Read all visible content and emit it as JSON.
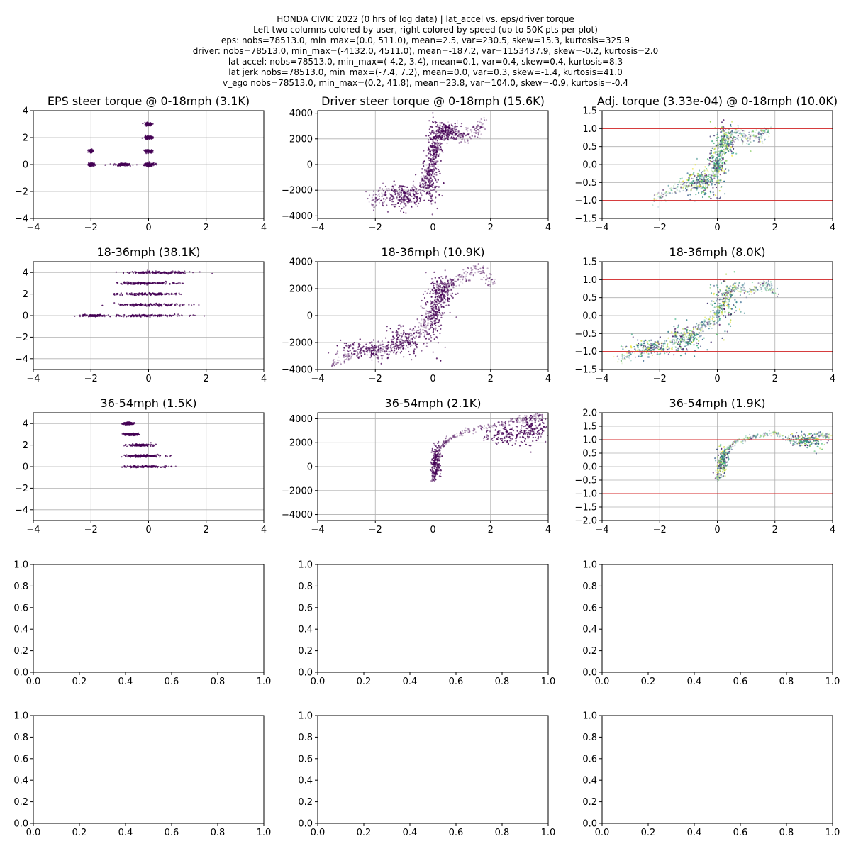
{
  "figure": {
    "suptitle_lines": [
      "HONDA CIVIC 2022 (0 hrs of log data) | lat_accel vs. eps/driver torque",
      "Left two columns colored by user, right colored by speed (up to 50K pts per plot)",
      "eps: nobs=78513.0, min_max=(0.0, 511.0), mean=2.5, var=230.5, skew=15.3, kurtosis=325.9",
      "driver: nobs=78513.0, min_max=(-4132.0, 4511.0), mean=-187.2, var=1153437.9, skew=-0.2, kurtosis=2.0",
      "lat accel: nobs=78513.0, min_max=(-4.2, 3.4), mean=0.1, var=0.4, skew=0.4, kurtosis=8.3",
      "lat jerk nobs=78513.0, min_max=(-7.4, 7.2), mean=0.0, var=0.3, skew=-1.4, kurtosis=41.0",
      "v_ego nobs=78513.0, min_max=(0.2, 41.8), mean=23.8, var=104.0, skew=-0.9, kurtosis=-0.4"
    ]
  },
  "colors": {
    "user_dark": "#440154",
    "speed_colormap": [
      "#440154",
      "#31688e",
      "#35b779",
      "#fde725"
    ],
    "limit_line": "#d62728",
    "grid": "#b0b0b0"
  },
  "chart_data": [
    {
      "type": "scatter",
      "title": "EPS steer torque @ 0-18mph (3.1K)",
      "xlim": [
        -4,
        4
      ],
      "ylim": [
        -4,
        4
      ],
      "xticks": [
        -4,
        -2,
        0,
        2,
        4
      ],
      "yticks": [
        -4,
        -2,
        0,
        2,
        4
      ],
      "grid": true,
      "color": "user",
      "clusters": [
        [
          -2.0,
          0,
          0.05,
          0.05
        ],
        [
          -2.0,
          1.0,
          0.03,
          0.05
        ],
        [
          -0.9,
          0,
          0.15,
          0.04
        ],
        [
          0,
          0,
          0.1,
          0.06
        ],
        [
          0,
          1,
          0.07,
          0.05
        ],
        [
          0,
          2,
          0.07,
          0.05
        ],
        [
          0,
          3,
          0.06,
          0.05
        ]
      ],
      "hlines": []
    },
    {
      "type": "scatter",
      "title": "Driver steer torque @ 0-18mph (15.6K)",
      "xlim": [
        -4,
        4
      ],
      "ylim": [
        -4200,
        4200
      ],
      "xticks": [
        -4,
        -2,
        0,
        2,
        4
      ],
      "yticks": [
        -4000,
        -2000,
        0,
        2000,
        4000
      ],
      "grid": true,
      "color": "user",
      "path": [
        [
          -2.2,
          -3000
        ],
        [
          -1.8,
          -2500
        ],
        [
          -1.2,
          -2200
        ],
        [
          -0.8,
          -2500
        ],
        [
          -0.4,
          -1800
        ],
        [
          -0.1,
          -600
        ],
        [
          0.0,
          0
        ],
        [
          0.1,
          1200
        ],
        [
          0.2,
          2400
        ],
        [
          0.6,
          2700
        ],
        [
          1.0,
          2200
        ],
        [
          1.4,
          2600
        ],
        [
          1.8,
          3200
        ]
      ],
      "spread": [
        0.15,
        700
      ],
      "clusters": [
        [
          -1.0,
          -2500,
          0.3,
          500
        ],
        [
          -0.1,
          -1500,
          0.15,
          900
        ],
        [
          0.05,
          1500,
          0.12,
          1000
        ],
        [
          0.5,
          2500,
          0.2,
          400
        ]
      ],
      "hlines": []
    },
    {
      "type": "scatter",
      "title": "Adj. torque (3.33e-04) @ 0-18mph (10.0K)",
      "xlim": [
        -4,
        4
      ],
      "ylim": [
        -1.5,
        1.5
      ],
      "xticks": [
        -4,
        -2,
        0,
        2,
        4
      ],
      "yticks": [
        -1.5,
        -1.0,
        -0.5,
        0.0,
        0.5,
        1.0,
        1.5
      ],
      "grid": true,
      "color": "speed",
      "path": [
        [
          -2.2,
          -1.0
        ],
        [
          -1.6,
          -0.7
        ],
        [
          -1.0,
          -0.6
        ],
        [
          -0.5,
          -0.5
        ],
        [
          -0.1,
          -0.2
        ],
        [
          0.0,
          0.0
        ],
        [
          0.1,
          0.4
        ],
        [
          0.3,
          0.8
        ],
        [
          0.7,
          0.9
        ],
        [
          1.1,
          0.7
        ],
        [
          1.5,
          0.8
        ],
        [
          1.8,
          1.0
        ]
      ],
      "spread": [
        0.15,
        0.2
      ],
      "clusters": [
        [
          -0.6,
          -0.5,
          0.25,
          0.2
        ],
        [
          0.0,
          0.0,
          0.15,
          0.4
        ],
        [
          0.3,
          0.6,
          0.2,
          0.25
        ]
      ],
      "hlines": [
        1.0,
        -1.0
      ]
    },
    {
      "type": "scatter",
      "title": "18-36mph (38.1K)",
      "xlim": [
        -4,
        4
      ],
      "ylim": [
        -5,
        5
      ],
      "xticks": [
        -4,
        -2,
        0,
        2,
        4
      ],
      "yticks": [
        -4,
        -2,
        0,
        2,
        4
      ],
      "grid": true,
      "color": "user",
      "clusters": [
        [
          -1.9,
          0,
          0.2,
          0.04
        ],
        [
          0.0,
          0,
          0.65,
          0.05
        ],
        [
          0.0,
          1,
          0.6,
          0.05
        ],
        [
          0.0,
          2,
          0.55,
          0.05
        ],
        [
          -0.1,
          3,
          0.5,
          0.05
        ],
        [
          0.3,
          4,
          0.6,
          0.05
        ]
      ],
      "hlines": []
    },
    {
      "type": "scatter",
      "title": "18-36mph (10.9K)",
      "xlim": [
        -4,
        4
      ],
      "ylim": [
        -4000,
        4000
      ],
      "xticks": [
        -4,
        -2,
        0,
        2,
        4
      ],
      "yticks": [
        -4000,
        -2000,
        0,
        2000,
        4000
      ],
      "grid": true,
      "color": "user",
      "path": [
        [
          -3.5,
          -3700
        ],
        [
          -3.0,
          -3000
        ],
        [
          -2.0,
          -2700
        ],
        [
          -1.2,
          -2200
        ],
        [
          -0.5,
          -1200
        ],
        [
          -0.1,
          -400
        ],
        [
          0.0,
          0
        ],
        [
          0.2,
          1200
        ],
        [
          0.5,
          2200
        ],
        [
          1.0,
          2700
        ],
        [
          1.6,
          3500
        ],
        [
          2.1,
          2300
        ]
      ],
      "spread": [
        0.2,
        500
      ],
      "clusters": [
        [
          -2.2,
          -2500,
          0.5,
          300
        ],
        [
          -1.0,
          -1900,
          0.35,
          600
        ],
        [
          0.0,
          0,
          0.18,
          1200
        ],
        [
          0.3,
          1700,
          0.2,
          600
        ]
      ],
      "hlines": []
    },
    {
      "type": "scatter",
      "title": "18-36mph (8.0K)",
      "xlim": [
        -4,
        4
      ],
      "ylim": [
        -1.5,
        1.5
      ],
      "xticks": [
        -4,
        -2,
        0,
        2,
        4
      ],
      "yticks": [
        -1.5,
        -1.0,
        -0.5,
        0.0,
        0.5,
        1.0,
        1.5
      ],
      "grid": true,
      "color": "speed",
      "path": [
        [
          -3.4,
          -1.2
        ],
        [
          -2.8,
          -1.0
        ],
        [
          -2.0,
          -0.85
        ],
        [
          -1.0,
          -0.6
        ],
        [
          -0.5,
          -0.3
        ],
        [
          0.0,
          0.0
        ],
        [
          0.3,
          0.5
        ],
        [
          0.6,
          0.8
        ],
        [
          1.2,
          0.7
        ],
        [
          1.7,
          0.9
        ],
        [
          2.0,
          0.6
        ]
      ],
      "spread": [
        0.2,
        0.15
      ],
      "clusters": [
        [
          -2.3,
          -0.9,
          0.5,
          0.12
        ],
        [
          -1.0,
          -0.6,
          0.3,
          0.2
        ],
        [
          0.2,
          0.3,
          0.25,
          0.35
        ]
      ],
      "hlines": [
        1.0,
        -1.0
      ]
    },
    {
      "type": "scatter",
      "title": "36-54mph (1.5K)",
      "xlim": [
        -4,
        4
      ],
      "ylim": [
        -5,
        5
      ],
      "xticks": [
        -4,
        -2,
        0,
        2,
        4
      ],
      "yticks": [
        -4,
        -2,
        0,
        2,
        4
      ],
      "grid": true,
      "color": "user",
      "clusters": [
        [
          -0.1,
          0,
          0.35,
          0.04
        ],
        [
          -0.2,
          1,
          0.35,
          0.05
        ],
        [
          -0.3,
          2,
          0.2,
          0.05
        ],
        [
          -0.6,
          3,
          0.12,
          0.05
        ],
        [
          -0.7,
          4,
          0.08,
          0.05
        ]
      ],
      "hlines": []
    },
    {
      "type": "scatter",
      "title": "36-54mph (2.1K)",
      "xlim": [
        -4,
        4
      ],
      "ylim": [
        -4500,
        4500
      ],
      "xticks": [
        -4,
        -2,
        0,
        2,
        4
      ],
      "yticks": [
        -4000,
        -2000,
        0,
        2000,
        4000
      ],
      "grid": true,
      "color": "user",
      "path": [
        [
          0.0,
          -1200
        ],
        [
          0.1,
          0
        ],
        [
          0.2,
          1500
        ],
        [
          0.5,
          2200
        ],
        [
          1.2,
          3000
        ],
        [
          2.2,
          3500
        ],
        [
          3.0,
          3900
        ],
        [
          3.8,
          4200
        ]
      ],
      "spread": [
        0.1,
        250
      ],
      "clusters": [
        [
          0.1,
          300,
          0.08,
          700
        ],
        [
          2.6,
          2600,
          0.4,
          350
        ],
        [
          3.5,
          3200,
          0.3,
          600
        ]
      ],
      "hlines": []
    },
    {
      "type": "scatter",
      "title": "36-54mph (1.9K)",
      "xlim": [
        -4,
        4
      ],
      "ylim": [
        -2,
        2
      ],
      "xticks": [
        -4,
        -2,
        0,
        2,
        4
      ],
      "yticks": [
        -2.0,
        -1.5,
        -1.0,
        -0.5,
        0.0,
        0.5,
        1.0,
        1.5,
        2.0
      ],
      "grid": true,
      "color": "speed",
      "path": [
        [
          0.0,
          -0.5
        ],
        [
          0.1,
          0.0
        ],
        [
          0.2,
          0.5
        ],
        [
          0.6,
          0.9
        ],
        [
          1.2,
          1.1
        ],
        [
          2.0,
          1.25
        ],
        [
          2.8,
          0.9
        ],
        [
          3.5,
          1.2
        ],
        [
          3.9,
          1.1
        ]
      ],
      "spread": [
        0.1,
        0.1
      ],
      "clusters": [
        [
          0.2,
          0.2,
          0.1,
          0.25
        ],
        [
          3.1,
          0.95,
          0.3,
          0.15
        ]
      ],
      "hlines": [
        1.0,
        -1.0
      ]
    },
    {
      "type": "scatter",
      "title": "",
      "xlim": [
        0,
        1
      ],
      "ylim": [
        0,
        1
      ],
      "xticks": [
        0.0,
        0.2,
        0.4,
        0.6,
        0.8,
        1.0
      ],
      "yticks": [
        0.0,
        0.2,
        0.4,
        0.6,
        0.8,
        1.0
      ],
      "grid": false,
      "empty": true,
      "hlines": []
    },
    {
      "type": "scatter",
      "title": "",
      "xlim": [
        0,
        1
      ],
      "ylim": [
        0,
        1
      ],
      "xticks": [
        0.0,
        0.2,
        0.4,
        0.6,
        0.8,
        1.0
      ],
      "yticks": [
        0.0,
        0.2,
        0.4,
        0.6,
        0.8,
        1.0
      ],
      "grid": false,
      "empty": true,
      "hlines": []
    },
    {
      "type": "scatter",
      "title": "",
      "xlim": [
        0,
        1
      ],
      "ylim": [
        0,
        1
      ],
      "xticks": [
        0.0,
        0.2,
        0.4,
        0.6,
        0.8,
        1.0
      ],
      "yticks": [
        0.0,
        0.2,
        0.4,
        0.6,
        0.8,
        1.0
      ],
      "grid": false,
      "empty": true,
      "hlines": []
    },
    {
      "type": "scatter",
      "title": "",
      "xlim": [
        0,
        1
      ],
      "ylim": [
        0,
        1
      ],
      "xticks": [
        0.0,
        0.2,
        0.4,
        0.6,
        0.8,
        1.0
      ],
      "yticks": [
        0.0,
        0.2,
        0.4,
        0.6,
        0.8,
        1.0
      ],
      "grid": false,
      "empty": true,
      "hlines": []
    },
    {
      "type": "scatter",
      "title": "",
      "xlim": [
        0,
        1
      ],
      "ylim": [
        0,
        1
      ],
      "xticks": [
        0.0,
        0.2,
        0.4,
        0.6,
        0.8,
        1.0
      ],
      "yticks": [
        0.0,
        0.2,
        0.4,
        0.6,
        0.8,
        1.0
      ],
      "grid": false,
      "empty": true,
      "hlines": []
    },
    {
      "type": "scatter",
      "title": "",
      "xlim": [
        0,
        1
      ],
      "ylim": [
        0,
        1
      ],
      "xticks": [
        0.0,
        0.2,
        0.4,
        0.6,
        0.8,
        1.0
      ],
      "yticks": [
        0.0,
        0.2,
        0.4,
        0.6,
        0.8,
        1.0
      ],
      "grid": false,
      "empty": true,
      "hlines": []
    }
  ]
}
